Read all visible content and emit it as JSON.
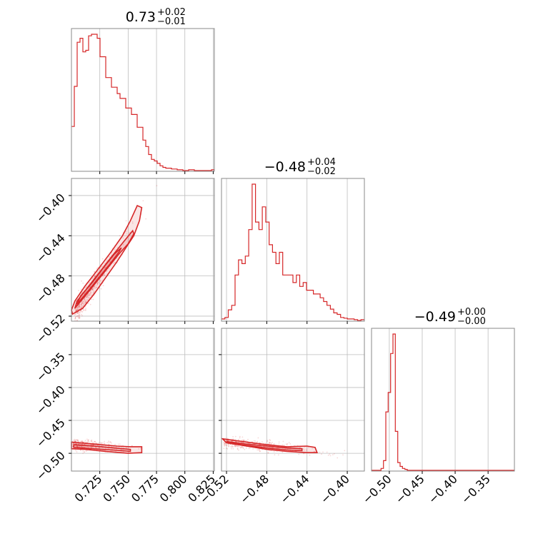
{
  "chart_data": {
    "type": "corner",
    "color": "#d62728",
    "parameters": [
      {
        "median": 0.73,
        "plus": 0.02,
        "minus": 0.01,
        "range": [
          0.7,
          0.826
        ],
        "ticks": [
          0.725,
          0.75,
          0.775,
          0.8,
          0.825
        ],
        "tick_labels": [
          "0.725",
          "0.750",
          "0.775",
          "0.800",
          "0.825"
        ],
        "title_main": "0.73",
        "title_plus": "+0.02",
        "title_minus": "−0.01"
      },
      {
        "median": -0.48,
        "plus": 0.04,
        "minus": 0.02,
        "range": [
          -0.525,
          -0.383
        ],
        "ticks": [
          -0.52,
          -0.48,
          -0.44,
          -0.4
        ],
        "tick_labels": [
          "−0.52",
          "−0.48",
          "−0.44",
          "−0.40"
        ],
        "title_main": "−0.48",
        "title_plus": "+0.04",
        "title_minus": "−0.02"
      },
      {
        "median": -0.49,
        "plus": 0.0,
        "minus": 0.0,
        "range": [
          -0.527,
          -0.31
        ],
        "ticks": [
          -0.5,
          -0.45,
          -0.4,
          -0.35
        ],
        "tick_labels": [
          "−0.50",
          "−0.45",
          "−0.40",
          "−0.35"
        ],
        "title_main": "−0.49",
        "title_plus": "+0.00",
        "title_minus": "−0.00"
      }
    ],
    "histograms": [
      {
        "edges": [
          0.7,
          0.826
        ],
        "counts": [
          55,
          105,
          160,
          165,
          148,
          150,
          168,
          170,
          170,
          165,
          142,
          142,
          116,
          116,
          104,
          104,
          96,
          90,
          90,
          78,
          78,
          70,
          70,
          54,
          54,
          38,
          30,
          20,
          14,
          12,
          9,
          6,
          4,
          3,
          3,
          2,
          2,
          1,
          1,
          0,
          0,
          1,
          1,
          0,
          0,
          0,
          0,
          0,
          0,
          1
        ]
      },
      {
        "edges": [
          -0.525,
          -0.383
        ],
        "counts": [
          2,
          4,
          14,
          20,
          60,
          80,
          75,
          85,
          120,
          180,
          130,
          120,
          150,
          130,
          100,
          90,
          75,
          90,
          60,
          60,
          60,
          50,
          60,
          45,
          50,
          40,
          40,
          35,
          35,
          30,
          25,
          20,
          15,
          10,
          8,
          4,
          3,
          2,
          2,
          1,
          0,
          1
        ]
      },
      {
        "edges": [
          -0.527,
          -0.31
        ],
        "counts": [
          0,
          0,
          0,
          0,
          2,
          10,
          60,
          80,
          120,
          140,
          40,
          8,
          4,
          2,
          1,
          0,
          0,
          0,
          0,
          0,
          0,
          0,
          0,
          0,
          0,
          0,
          0,
          0,
          0,
          0,
          0,
          0,
          0,
          0,
          0,
          0,
          0,
          0,
          0,
          0,
          0,
          0,
          0,
          0,
          0,
          0,
          0,
          0,
          0,
          0,
          0,
          0,
          0,
          0,
          0,
          0,
          0,
          0,
          0,
          0
        ]
      }
    ],
    "contours": [
      {
        "row": 1,
        "col": 0,
        "levels": [
          [
            [
              0.701,
              -0.518
            ],
            [
              0.71,
              -0.512
            ],
            [
              0.72,
              -0.498
            ],
            [
              0.73,
              -0.482
            ],
            [
              0.74,
              -0.466
            ],
            [
              0.748,
              -0.452
            ],
            [
              0.755,
              -0.44
            ],
            [
              0.76,
              -0.425
            ],
            [
              0.762,
              -0.412
            ],
            [
              0.758,
              -0.41
            ],
            [
              0.752,
              -0.425
            ],
            [
              0.745,
              -0.44
            ],
            [
              0.735,
              -0.456
            ],
            [
              0.723,
              -0.474
            ],
            [
              0.712,
              -0.49
            ],
            [
              0.703,
              -0.505
            ],
            [
              0.7,
              -0.514
            ]
          ],
          [
            [
              0.703,
              -0.512
            ],
            [
              0.712,
              -0.5
            ],
            [
              0.722,
              -0.486
            ],
            [
              0.732,
              -0.472
            ],
            [
              0.742,
              -0.458
            ],
            [
              0.75,
              -0.448
            ],
            [
              0.755,
              -0.438
            ],
            [
              0.754,
              -0.435
            ],
            [
              0.746,
              -0.446
            ],
            [
              0.736,
              -0.46
            ],
            [
              0.725,
              -0.476
            ],
            [
              0.714,
              -0.492
            ],
            [
              0.705,
              -0.505
            ]
          ],
          [
            [
              0.705,
              -0.508
            ],
            [
              0.714,
              -0.496
            ],
            [
              0.724,
              -0.482
            ],
            [
              0.734,
              -0.468
            ],
            [
              0.742,
              -0.456
            ],
            [
              0.744,
              -0.452
            ],
            [
              0.738,
              -0.458
            ],
            [
              0.728,
              -0.472
            ],
            [
              0.718,
              -0.487
            ],
            [
              0.708,
              -0.5
            ]
          ]
        ]
      },
      {
        "row": 2,
        "col": 0,
        "levels": [
          [
            [
              0.7,
              -0.483
            ],
            [
              0.72,
              -0.486
            ],
            [
              0.74,
              -0.489
            ],
            [
              0.752,
              -0.49
            ],
            [
              0.762,
              -0.49
            ],
            [
              0.762,
              -0.499
            ],
            [
              0.75,
              -0.5
            ],
            [
              0.73,
              -0.497
            ],
            [
              0.712,
              -0.494
            ],
            [
              0.7,
              -0.493
            ]
          ],
          [
            [
              0.702,
              -0.487
            ],
            [
              0.72,
              -0.489
            ],
            [
              0.738,
              -0.492
            ],
            [
              0.752,
              -0.494
            ],
            [
              0.752,
              -0.497
            ],
            [
              0.736,
              -0.495
            ],
            [
              0.718,
              -0.493
            ],
            [
              0.702,
              -0.491
            ]
          ]
        ]
      },
      {
        "row": 2,
        "col": 1,
        "levels": [
          [
            [
              -0.524,
              -0.478
            ],
            [
              -0.5,
              -0.483
            ],
            [
              -0.48,
              -0.487
            ],
            [
              -0.46,
              -0.49
            ],
            [
              -0.44,
              -0.489
            ],
            [
              -0.432,
              -0.491
            ],
            [
              -0.43,
              -0.499
            ],
            [
              -0.44,
              -0.499
            ],
            [
              -0.46,
              -0.497
            ],
            [
              -0.48,
              -0.494
            ],
            [
              -0.5,
              -0.489
            ],
            [
              -0.52,
              -0.484
            ]
          ],
          [
            [
              -0.52,
              -0.482
            ],
            [
              -0.5,
              -0.486
            ],
            [
              -0.48,
              -0.489
            ],
            [
              -0.46,
              -0.492
            ],
            [
              -0.445,
              -0.493
            ],
            [
              -0.445,
              -0.496
            ],
            [
              -0.46,
              -0.495
            ],
            [
              -0.48,
              -0.492
            ],
            [
              -0.5,
              -0.488
            ],
            [
              -0.518,
              -0.484
            ]
          ]
        ]
      }
    ]
  }
}
